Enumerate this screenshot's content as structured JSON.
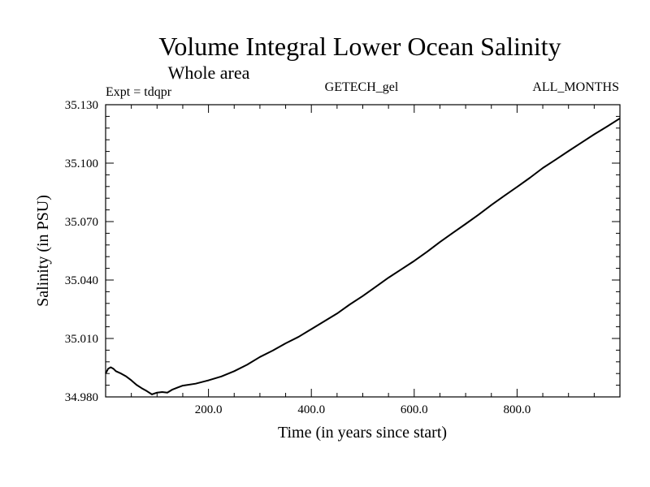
{
  "chart_data": {
    "type": "line",
    "title": "Volume Integral Lower Ocean Salinity",
    "subtitle": "Whole area",
    "expt_label": "Expt = tdqpr",
    "center_label": "GETECH_gel",
    "right_label": "ALL_MONTHS",
    "xlabel": "Time (in years since start)",
    "ylabel": "Salinity (in PSU)",
    "xlim": [
      0,
      1000
    ],
    "ylim": [
      34.98,
      35.13
    ],
    "x_major_ticks": [
      200,
      400,
      600,
      800
    ],
    "x_tick_labels": [
      "200.0",
      "400.0",
      "600.0",
      "800.0"
    ],
    "y_major_ticks": [
      34.98,
      35.01,
      35.04,
      35.07,
      35.1,
      35.13
    ],
    "y_tick_labels": [
      "34.980",
      "35.010",
      "35.040",
      "35.070",
      "35.100",
      "35.130"
    ],
    "series": [
      {
        "name": "Salinity",
        "color": "#000000",
        "x": [
          0,
          5,
          10,
          15,
          20,
          30,
          40,
          50,
          60,
          70,
          80,
          90,
          100,
          110,
          120,
          130,
          140,
          150,
          175,
          200,
          225,
          250,
          275,
          300,
          325,
          350,
          375,
          400,
          425,
          450,
          475,
          500,
          525,
          550,
          575,
          600,
          625,
          650,
          675,
          700,
          725,
          750,
          775,
          800,
          825,
          850,
          875,
          900,
          925,
          950,
          975,
          1000
        ],
        "values": [
          34.992,
          34.9945,
          34.9952,
          34.9945,
          34.9932,
          34.992,
          34.9905,
          34.9885,
          34.9862,
          34.9845,
          34.983,
          34.9813,
          34.9822,
          34.9825,
          34.9822,
          34.9838,
          34.9848,
          34.9858,
          34.9868,
          34.9885,
          34.9905,
          34.9932,
          34.9965,
          35.0005,
          35.0038,
          35.0075,
          35.0108,
          35.0148,
          35.0188,
          35.0228,
          35.0275,
          35.0318,
          35.0365,
          35.0412,
          35.0455,
          35.0498,
          35.0545,
          35.0595,
          35.0642,
          35.0688,
          35.0735,
          35.0785,
          35.0832,
          35.0878,
          35.0925,
          35.0975,
          35.1018,
          35.1062,
          35.1105,
          35.1148,
          35.1188,
          35.123
        ]
      }
    ]
  }
}
